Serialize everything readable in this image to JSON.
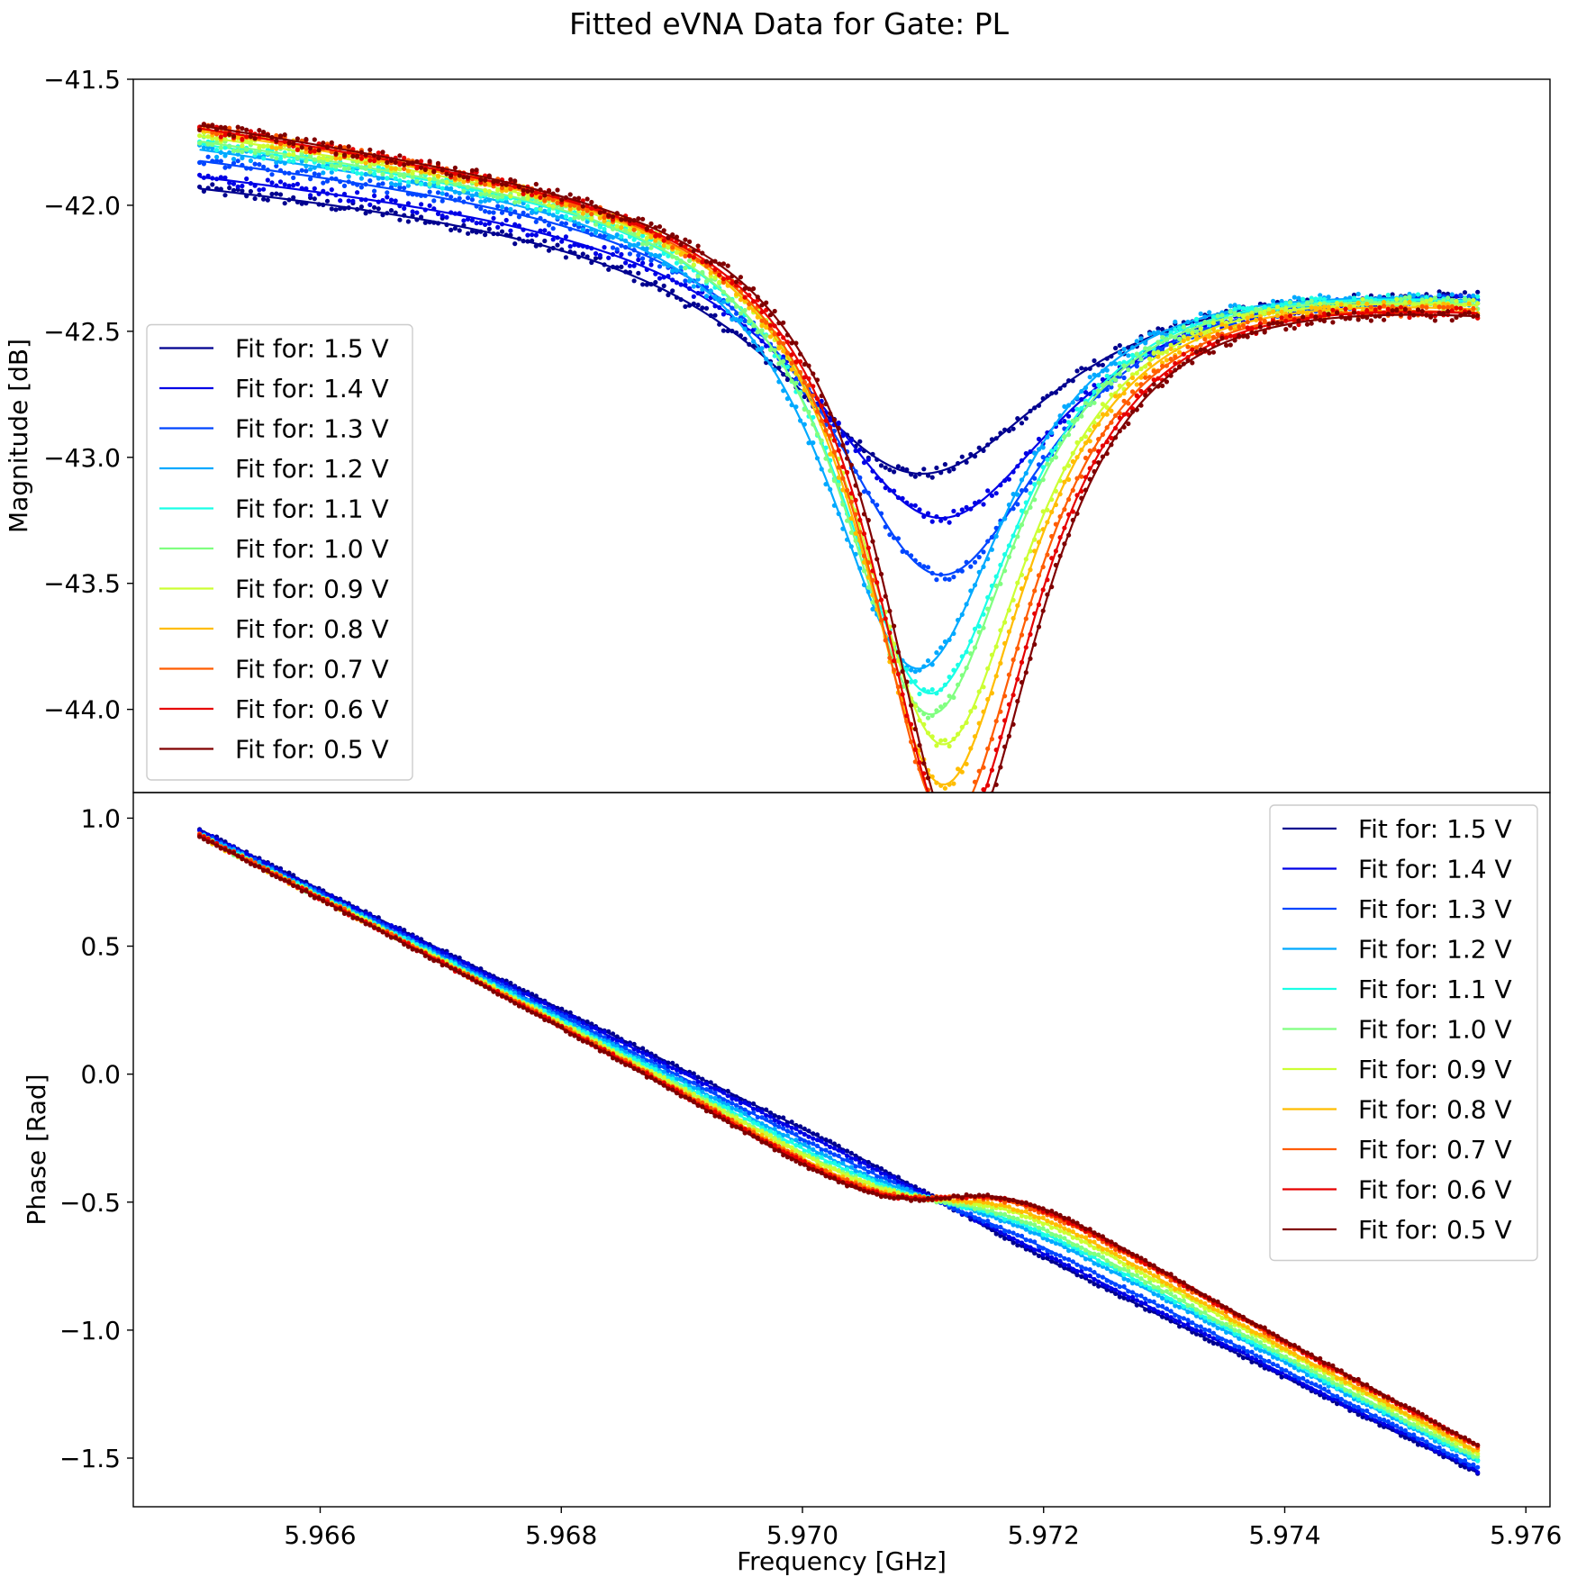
{
  "chart_data": {
    "type": "line",
    "title": "Fitted eVNA Data for Gate: PL",
    "xlabel": "Frequency [GHz]",
    "x_range": [
      5.96445,
      5.9762
    ],
    "x_ticks": [
      "5.966",
      "5.968",
      "5.970",
      "5.972",
      "5.974",
      "5.976"
    ],
    "x_tick_values": [
      5.966,
      5.968,
      5.97,
      5.972,
      5.974,
      5.976
    ],
    "freq_start": 5.965,
    "freq_stop": 5.9756,
    "voltages": [
      1.5,
      1.4,
      1.3,
      1.2,
      1.1,
      1.0,
      0.9,
      0.8,
      0.7,
      0.6,
      0.5
    ],
    "colors": [
      "#00008f",
      "#0000e6",
      "#0046ff",
      "#00a9ff",
      "#1affe6",
      "#80ff80",
      "#ccff33",
      "#ffbd00",
      "#ff5c00",
      "#e60000",
      "#800000"
    ],
    "panels": [
      {
        "id": "magnitude",
        "ylabel": "Magnitude [dB]",
        "ylim": [
          -44.33,
          -41.5
        ],
        "y_ticks": [
          "−41.5",
          "−42.0",
          "−42.5",
          "−43.0",
          "−43.5",
          "−44.0"
        ],
        "y_tick_values": [
          -41.5,
          -42.0,
          -42.5,
          -43.0,
          -43.5,
          -44.0
        ],
        "legend_position": "left",
        "legend_labels": [
          "Fit for: 1.5 V",
          "Fit for: 1.4 V",
          "Fit for: 1.3 V",
          "Fit for: 1.2 V",
          "Fit for: 1.1 V",
          "Fit for: 1.0 V",
          "Fit for: 0.9 V",
          "Fit for: 0.8 V",
          "Fit for: 0.7 V",
          "Fit for: 0.6 V",
          "Fit for: 0.5 V"
        ],
        "series": [
          {
            "name": "Fit for: 1.5 V",
            "start": -41.88,
            "end": -42.28,
            "dip_depth": 0.96,
            "dip_center": 5.97095,
            "dip_width": 0.00145,
            "asymmetry": 0.0
          },
          {
            "name": "Fit for: 1.4 V",
            "start": -41.84,
            "end": -42.29,
            "dip_depth": 1.14,
            "dip_center": 5.9711,
            "dip_width": 0.0013,
            "asymmetry": 0.15
          },
          {
            "name": "Fit for: 1.3 V",
            "start": -41.78,
            "end": -42.29,
            "dip_depth": 1.39,
            "dip_center": 5.9711,
            "dip_width": 0.00115,
            "asymmetry": 0.3
          },
          {
            "name": "Fit for: 1.2 V",
            "start": -41.74,
            "end": -42.3,
            "dip_depth": 1.78,
            "dip_center": 5.9709,
            "dip_width": 0.00095,
            "asymmetry": 0.5
          },
          {
            "name": "Fit for: 1.1 V",
            "start": -41.72,
            "end": -42.3,
            "dip_depth": 1.88,
            "dip_center": 5.971,
            "dip_width": 0.00092,
            "asymmetry": 0.55
          },
          {
            "name": "Fit for: 1.0 V",
            "start": -41.71,
            "end": -42.31,
            "dip_depth": 1.96,
            "dip_center": 5.971,
            "dip_width": 0.0009,
            "asymmetry": 0.6
          },
          {
            "name": "Fit for: 0.9 V",
            "start": -41.69,
            "end": -42.31,
            "dip_depth": 2.08,
            "dip_center": 5.9711,
            "dip_width": 0.00088,
            "asymmetry": 0.65
          },
          {
            "name": "Fit for: 0.8 V",
            "start": -41.67,
            "end": -42.32,
            "dip_depth": 2.24,
            "dip_center": 5.9711,
            "dip_width": 0.00086,
            "asymmetry": 0.7
          },
          {
            "name": "Fit for: 0.7 V",
            "start": -41.66,
            "end": -42.33,
            "dip_depth": 2.38,
            "dip_center": 5.97115,
            "dip_width": 0.00084,
            "asymmetry": 0.72
          },
          {
            "name": "Fit for: 0.6 V",
            "start": -41.66,
            "end": -42.33,
            "dip_depth": 2.44,
            "dip_center": 5.9712,
            "dip_width": 0.00083,
            "asymmetry": 0.74
          },
          {
            "name": "Fit for: 0.5 V",
            "start": -41.65,
            "end": -42.34,
            "dip_depth": 2.46,
            "dip_center": 5.97125,
            "dip_width": 0.00082,
            "asymmetry": 0.76
          }
        ]
      },
      {
        "id": "phase",
        "ylabel": "Phase [Rad]",
        "ylim": [
          -1.69,
          1.1
        ],
        "y_ticks": [
          "1.0",
          "0.5",
          "0.0",
          "−0.5",
          "−1.0",
          "−1.5"
        ],
        "y_tick_values": [
          1.0,
          0.5,
          0.0,
          -0.5,
          -1.0,
          -1.5
        ],
        "legend_position": "upper right",
        "legend_labels": [
          "Fit for: 1.5 V",
          "Fit for: 1.4 V",
          "Fit for: 1.3 V",
          "Fit for: 1.2 V",
          "Fit for: 1.1 V",
          "Fit for: 1.0 V",
          "Fit for: 0.9 V",
          "Fit for: 0.8 V",
          "Fit for: 0.7 V",
          "Fit for: 0.6 V",
          "Fit for: 0.5 V"
        ],
        "series": [
          {
            "name": "Fit for: 1.5 V",
            "start": 0.95,
            "end": -1.55,
            "bump": 0.02
          },
          {
            "name": "Fit for: 1.4 V",
            "start": 0.95,
            "end": -1.55,
            "bump": 0.0
          },
          {
            "name": "Fit for: 1.3 V",
            "start": 0.95,
            "end": -1.55,
            "bump": -0.03
          },
          {
            "name": "Fit for: 1.2 V",
            "start": 0.96,
            "end": -1.54,
            "bump": -0.07
          },
          {
            "name": "Fit for: 1.1 V",
            "start": 0.96,
            "end": -1.54,
            "bump": -0.09
          },
          {
            "name": "Fit for: 1.0 V",
            "start": 0.96,
            "end": -1.54,
            "bump": -0.11
          },
          {
            "name": "Fit for: 0.9 V",
            "start": 0.97,
            "end": -1.53,
            "bump": -0.13
          },
          {
            "name": "Fit for: 0.8 V",
            "start": 0.97,
            "end": -1.53,
            "bump": -0.15
          },
          {
            "name": "Fit for: 0.7 V",
            "start": 0.98,
            "end": -1.52,
            "bump": -0.17
          },
          {
            "name": "Fit for: 0.6 V",
            "start": 0.98,
            "end": -1.52,
            "bump": -0.18
          },
          {
            "name": "Fit for: 0.5 V",
            "start": 0.98,
            "end": -1.52,
            "bump": -0.19
          }
        ]
      }
    ]
  }
}
